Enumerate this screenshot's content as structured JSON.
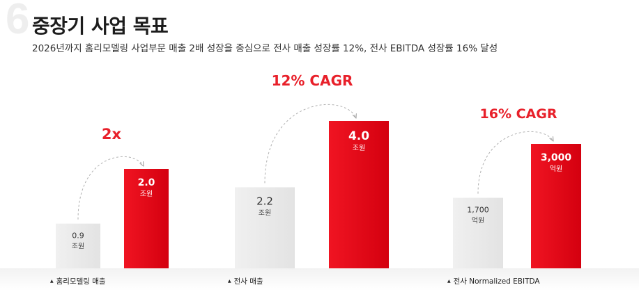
{
  "section_number": "6",
  "title": "중장기 사업 목표",
  "subtitle": "2026년까지 홈리모델링 사업부문 매출 2배 성장을 중심으로 전사 매출 성장률 12%, 전사 EBITDA 성장률 16% 달성",
  "colors": {
    "highlight": "#e60012",
    "base_bar": "#ececec",
    "accent_text": "#e8202a"
  },
  "chart_data": [
    {
      "type": "bar",
      "group_label": "홈리모델링 매출",
      "growth_label": "2x",
      "unit": "조원",
      "values": [
        0.9,
        2.0
      ],
      "value_labels": [
        "0.9",
        "2.0"
      ]
    },
    {
      "type": "bar",
      "group_label": "전사 매출",
      "growth_label": "12% CAGR",
      "unit": "조원",
      "values": [
        2.2,
        4.0
      ],
      "value_labels": [
        "2.2",
        "4.0"
      ]
    },
    {
      "type": "bar",
      "group_label": "전사 Normalized EBITDA",
      "growth_label": "16% CAGR",
      "unit": "억원",
      "values": [
        1700,
        3000
      ],
      "value_labels": [
        "1,700",
        "3,000"
      ]
    }
  ]
}
